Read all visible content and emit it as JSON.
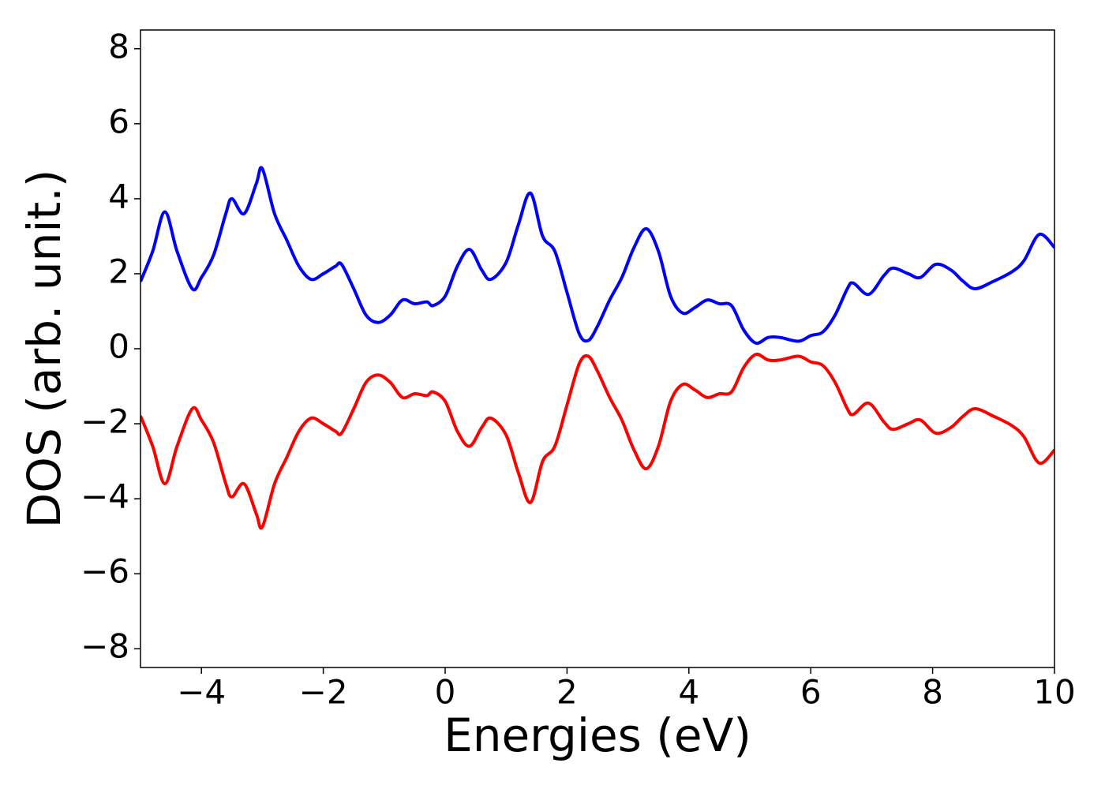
{
  "chart_data": {
    "type": "line",
    "x_label": "Energies (eV)",
    "y_label": "DOS (arb. unit.)",
    "xlim": [
      -5,
      10
    ],
    "ylim": [
      -8.5,
      8.5
    ],
    "xticks": [
      {
        "value": -4,
        "label": "−4"
      },
      {
        "value": -2,
        "label": "−2"
      },
      0,
      2,
      4,
      6,
      8,
      10
    ],
    "yticks": [
      {
        "value": -8,
        "label": "−8"
      },
      {
        "value": -6,
        "label": "−6"
      },
      {
        "value": -4,
        "label": "−4"
      },
      {
        "value": -2,
        "label": "−2"
      },
      0,
      2,
      4,
      6,
      8
    ],
    "x": [
      -5,
      -4.8,
      -4.6,
      -4.4,
      -4.15,
      -4.0,
      -3.8,
      -3.6,
      -3.5,
      -3.3,
      -3.1,
      -3.0,
      -2.8,
      -2.6,
      -2.4,
      -2.2,
      -2.0,
      -1.8,
      -1.7,
      -1.5,
      -1.3,
      -1.1,
      -0.9,
      -0.7,
      -0.5,
      -0.3,
      -0.2,
      0,
      0.2,
      0.4,
      0.6,
      0.75,
      1.0,
      1.2,
      1.4,
      1.6,
      1.8,
      2.0,
      2.2,
      2.35,
      2.5,
      2.7,
      2.9,
      3.1,
      3.3,
      3.5,
      3.7,
      3.9,
      4.1,
      4.3,
      4.5,
      4.7,
      4.9,
      5.1,
      5.3,
      5.5,
      5.8,
      6.0,
      6.2,
      6.4,
      6.6,
      6.7,
      6.95,
      7.2,
      7.35,
      7.6,
      7.8,
      8.05,
      8.3,
      8.5,
      8.7,
      9.0,
      9.3,
      9.5,
      9.75,
      10
    ],
    "series": [
      {
        "color": "#0000ff",
        "values": [
          1.79,
          2.6,
          3.65,
          2.6,
          1.6,
          1.9,
          2.5,
          3.6,
          4.0,
          3.6,
          4.4,
          4.8,
          3.6,
          2.9,
          2.2,
          1.85,
          2.0,
          2.2,
          2.25,
          1.6,
          0.9,
          0.7,
          0.9,
          1.3,
          1.2,
          1.25,
          1.15,
          1.4,
          2.2,
          2.65,
          2.1,
          1.85,
          2.3,
          3.3,
          4.15,
          3.0,
          2.6,
          1.5,
          0.4,
          0.22,
          0.6,
          1.3,
          1.9,
          2.7,
          3.2,
          2.6,
          1.4,
          0.95,
          1.1,
          1.3,
          1.2,
          1.15,
          0.5,
          0.15,
          0.3,
          0.3,
          0.2,
          0.35,
          0.45,
          0.9,
          1.6,
          1.75,
          1.45,
          1.95,
          2.15,
          2.0,
          1.9,
          2.25,
          2.1,
          1.8,
          1.6,
          1.8,
          2.05,
          2.35,
          3.05,
          2.7
        ]
      },
      {
        "color": "#ff0000",
        "values": [
          -1.79,
          -2.6,
          -3.6,
          -2.6,
          -1.6,
          -1.9,
          -2.5,
          -3.6,
          -3.95,
          -3.6,
          -4.4,
          -4.75,
          -3.6,
          -2.9,
          -2.2,
          -1.85,
          -2.0,
          -2.2,
          -2.25,
          -1.6,
          -0.9,
          -0.7,
          -0.9,
          -1.3,
          -1.2,
          -1.25,
          -1.15,
          -1.4,
          -2.2,
          -2.6,
          -2.1,
          -1.85,
          -2.3,
          -3.3,
          -4.1,
          -3.0,
          -2.6,
          -1.5,
          -0.4,
          -0.2,
          -0.6,
          -1.3,
          -1.9,
          -2.7,
          -3.2,
          -2.6,
          -1.4,
          -0.95,
          -1.1,
          -1.3,
          -1.2,
          -1.15,
          -0.5,
          -0.15,
          -0.3,
          -0.3,
          -0.2,
          -0.35,
          -0.45,
          -0.9,
          -1.6,
          -1.75,
          -1.45,
          -1.95,
          -2.15,
          -2.0,
          -1.9,
          -2.25,
          -2.1,
          -1.8,
          -1.6,
          -1.8,
          -2.05,
          -2.35,
          -3.05,
          -2.7
        ]
      }
    ]
  }
}
